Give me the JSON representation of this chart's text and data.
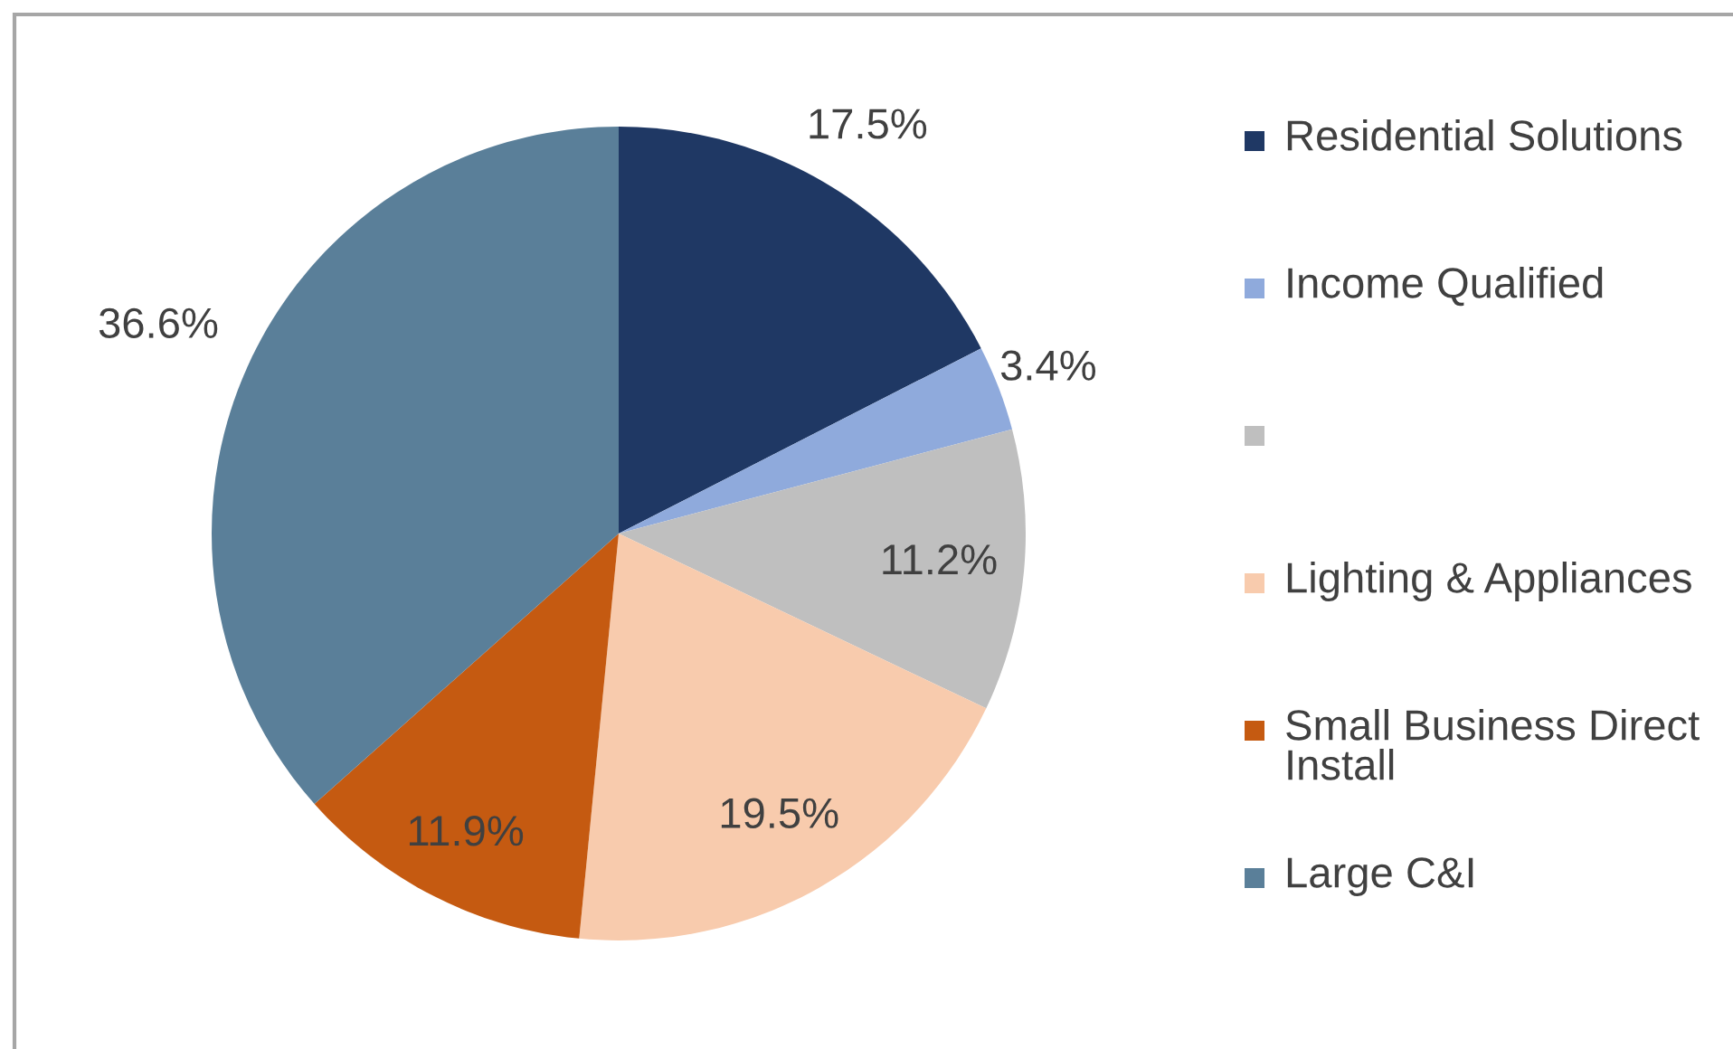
{
  "chart_data": {
    "type": "pie",
    "categories": [
      "Residential Solutions",
      "Income Qualified",
      null,
      "Lighting & Appliances",
      "Small Business Direct Install",
      "Large C&I"
    ],
    "values": [
      17.5,
      3.4,
      11.2,
      19.5,
      11.9,
      36.6
    ],
    "colors": [
      "#1f3864",
      "#8faadc",
      "#bfbfbf",
      "#f8cbad",
      "#c55a11",
      "#5a7f99"
    ],
    "value_labels": [
      "17.5%",
      "3.4%",
      "11.2%",
      "19.5%",
      "11.9%",
      "36.6%"
    ],
    "legend": "right"
  }
}
